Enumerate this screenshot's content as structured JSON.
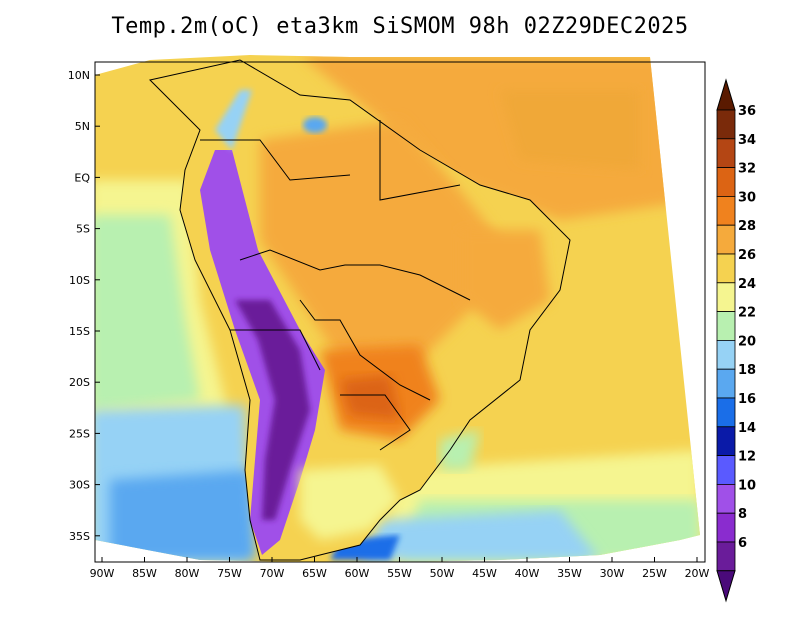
{
  "title": "Temp.2m(oC) eta3km SiSMOM 98h 02Z29DEC2025",
  "map": {
    "lat_labels": [
      "10N",
      "5N",
      "EQ",
      "5S",
      "10S",
      "15S",
      "20S",
      "25S",
      "30S",
      "35S"
    ],
    "lon_labels": [
      "90W",
      "85W",
      "80W",
      "75W",
      "70W",
      "65W",
      "60W",
      "55W",
      "50W",
      "45W",
      "40W",
      "35W",
      "30W",
      "25W",
      "20W"
    ]
  },
  "colorbar": {
    "labels": [
      "6",
      "8",
      "10",
      "12",
      "14",
      "16",
      "18",
      "20",
      "22",
      "24",
      "26",
      "28",
      "30",
      "32",
      "34",
      "36"
    ],
    "colors": [
      "#6a1c9a",
      "#8a2ccf",
      "#a050e8",
      "#5a5aff",
      "#0a1aa8",
      "#1a6ee8",
      "#5aa8f0",
      "#96d2f5",
      "#b8f0b0",
      "#f5f590",
      "#f5d250",
      "#f5aa3c",
      "#f0821e",
      "#dc6414",
      "#b44614",
      "#7a2a0a"
    ],
    "arrow_low_color": "#4a0a7a",
    "arrow_high_color": "#5a1a00"
  }
}
